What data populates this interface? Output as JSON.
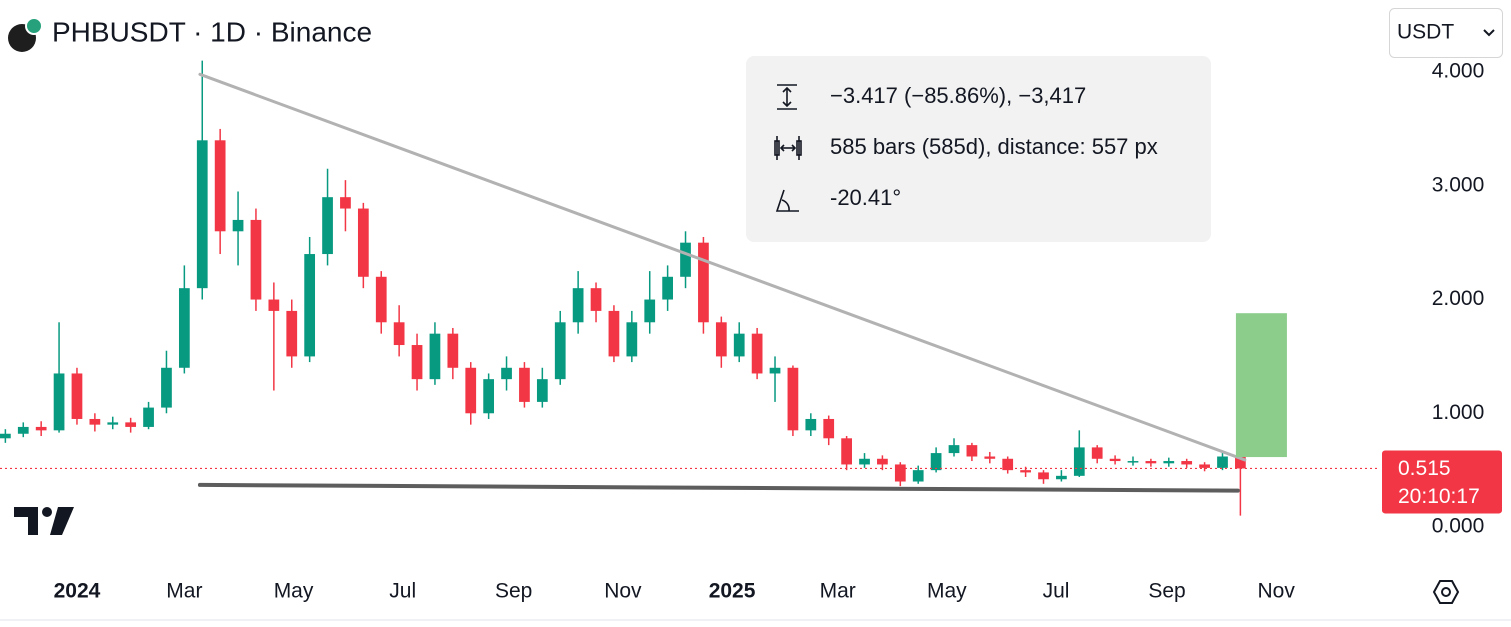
{
  "chart_data": {
    "type": "candlestick",
    "title": "PHBUSDT · 1D · Binance",
    "currency": "USDT",
    "x": [
      -40,
      -30,
      -20,
      -10,
      0,
      10,
      20,
      30,
      40,
      50,
      60,
      70,
      80,
      90,
      100,
      110,
      120,
      130,
      140,
      150,
      160,
      170,
      180,
      190,
      200,
      210,
      220,
      230,
      240,
      250,
      260,
      270,
      280,
      290,
      300,
      310,
      320,
      330,
      340,
      350,
      360,
      370,
      380,
      390,
      400,
      410,
      420,
      430,
      440,
      450,
      460,
      470,
      480,
      490,
      500,
      510,
      520,
      530,
      540,
      550,
      560,
      570,
      580,
      590,
      600,
      610,
      620,
      630,
      640,
      650
    ],
    "open": [
      0.78,
      0.82,
      0.88,
      0.85,
      1.35,
      0.95,
      0.9,
      0.92,
      0.88,
      1.05,
      1.4,
      2.1,
      3.4,
      2.6,
      2.7,
      2.0,
      1.9,
      1.5,
      2.4,
      2.9,
      2.8,
      2.2,
      1.8,
      1.6,
      1.3,
      1.7,
      1.4,
      1.0,
      1.3,
      1.4,
      1.1,
      1.3,
      1.8,
      2.1,
      1.9,
      1.5,
      1.8,
      2.0,
      2.2,
      2.5,
      1.8,
      1.5,
      1.7,
      1.35,
      1.4,
      0.85,
      0.95,
      0.78,
      0.55,
      0.6,
      0.55,
      0.4,
      0.5,
      0.65,
      0.72,
      0.62,
      0.6,
      0.5,
      0.48,
      0.42,
      0.45,
      0.7,
      0.6,
      0.58,
      0.58,
      0.56,
      0.58,
      0.55,
      0.52,
      0.62
    ],
    "high": [
      0.86,
      0.92,
      0.93,
      1.8,
      1.4,
      1.0,
      0.97,
      0.96,
      1.1,
      1.55,
      2.3,
      4.1,
      3.5,
      2.95,
      2.8,
      2.15,
      2.0,
      2.55,
      3.15,
      3.05,
      2.85,
      2.25,
      1.95,
      1.7,
      1.8,
      1.75,
      1.45,
      1.35,
      1.5,
      1.45,
      1.4,
      1.9,
      2.25,
      2.15,
      1.95,
      1.9,
      2.25,
      2.3,
      2.6,
      2.55,
      1.85,
      1.8,
      1.75,
      1.5,
      1.42,
      1.0,
      0.98,
      0.8,
      0.65,
      0.63,
      0.57,
      0.54,
      0.7,
      0.78,
      0.74,
      0.66,
      0.62,
      0.53,
      0.5,
      0.5,
      0.85,
      0.72,
      0.63,
      0.62,
      0.6,
      0.61,
      0.6,
      0.57,
      0.66,
      0.64
    ],
    "low": [
      0.74,
      0.79,
      0.8,
      0.83,
      0.9,
      0.84,
      0.86,
      0.83,
      0.86,
      1.0,
      1.35,
      2.0,
      2.4,
      2.3,
      1.9,
      1.2,
      1.4,
      1.45,
      2.3,
      2.6,
      2.1,
      1.7,
      1.5,
      1.2,
      1.25,
      1.3,
      0.9,
      0.95,
      1.2,
      1.05,
      1.05,
      1.25,
      1.7,
      1.8,
      1.45,
      1.45,
      1.7,
      1.9,
      2.1,
      1.7,
      1.4,
      1.45,
      1.3,
      1.1,
      0.8,
      0.8,
      0.72,
      0.5,
      0.52,
      0.5,
      0.36,
      0.38,
      0.48,
      0.62,
      0.58,
      0.56,
      0.47,
      0.44,
      0.38,
      0.4,
      0.44,
      0.56,
      0.55,
      0.54,
      0.53,
      0.53,
      0.52,
      0.49,
      0.5,
      0.1
    ],
    "close": [
      0.82,
      0.88,
      0.85,
      1.35,
      0.95,
      0.9,
      0.92,
      0.88,
      1.05,
      1.4,
      2.1,
      3.4,
      2.6,
      2.7,
      2.0,
      1.9,
      1.5,
      2.4,
      2.9,
      2.8,
      2.2,
      1.8,
      1.6,
      1.3,
      1.7,
      1.4,
      1.0,
      1.3,
      1.4,
      1.1,
      1.3,
      1.8,
      2.1,
      1.9,
      1.5,
      1.8,
      2.0,
      2.2,
      2.5,
      1.8,
      1.5,
      1.7,
      1.35,
      1.4,
      0.85,
      0.95,
      0.78,
      0.55,
      0.6,
      0.55,
      0.4,
      0.5,
      0.65,
      0.72,
      0.62,
      0.6,
      0.5,
      0.48,
      0.42,
      0.45,
      0.7,
      0.6,
      0.58,
      0.58,
      0.56,
      0.58,
      0.55,
      0.52,
      0.62,
      0.515
    ],
    "up_color": "#089981",
    "down_color": "#f23645",
    "xlim": [
      -43,
      728
    ],
    "ylim": [
      -0.29,
      4.15
    ],
    "xticks": [
      {
        "value": 0,
        "label": "2024"
      },
      {
        "value": 60,
        "label": "Mar"
      },
      {
        "value": 121,
        "label": "May"
      },
      {
        "value": 182,
        "label": "Jul"
      },
      {
        "value": 244,
        "label": "Sep"
      },
      {
        "value": 305,
        "label": "Nov"
      },
      {
        "value": 366,
        "label": "2025"
      },
      {
        "value": 425,
        "label": "Mar"
      },
      {
        "value": 486,
        "label": "May"
      },
      {
        "value": 547,
        "label": "Jul"
      },
      {
        "value": 609,
        "label": "Sep"
      },
      {
        "value": 670,
        "label": "Nov"
      }
    ],
    "yticks": [
      {
        "value": 0,
        "label": "0.000"
      },
      {
        "value": 1,
        "label": "1.000"
      },
      {
        "value": 2,
        "label": "2.000"
      },
      {
        "value": 3,
        "label": "3.000"
      },
      {
        "value": 4,
        "label": "4.000"
      }
    ],
    "last_price": {
      "value": 0.515,
      "label": "0.515"
    },
    "countdown": "20:10:17",
    "trendlines": [
      {
        "points": [
          [
            68.7,
            3.98
          ],
          [
            652.5,
            0.59
          ]
        ],
        "color": "#b2b2b2"
      },
      {
        "points": [
          [
            68.7,
            0.37
          ],
          [
            648.6,
            0.32
          ]
        ],
        "color": "#5d5d5d"
      }
    ],
    "target_box": {
      "x": [
        647.5,
        676
      ],
      "y": [
        0.615,
        1.88
      ],
      "color": "#8ccd8c"
    },
    "measure_info": [
      "−3.417 (−85.86%), −3,417",
      "585 bars (585d), distance: 557 px",
      "-20.41°"
    ]
  }
}
